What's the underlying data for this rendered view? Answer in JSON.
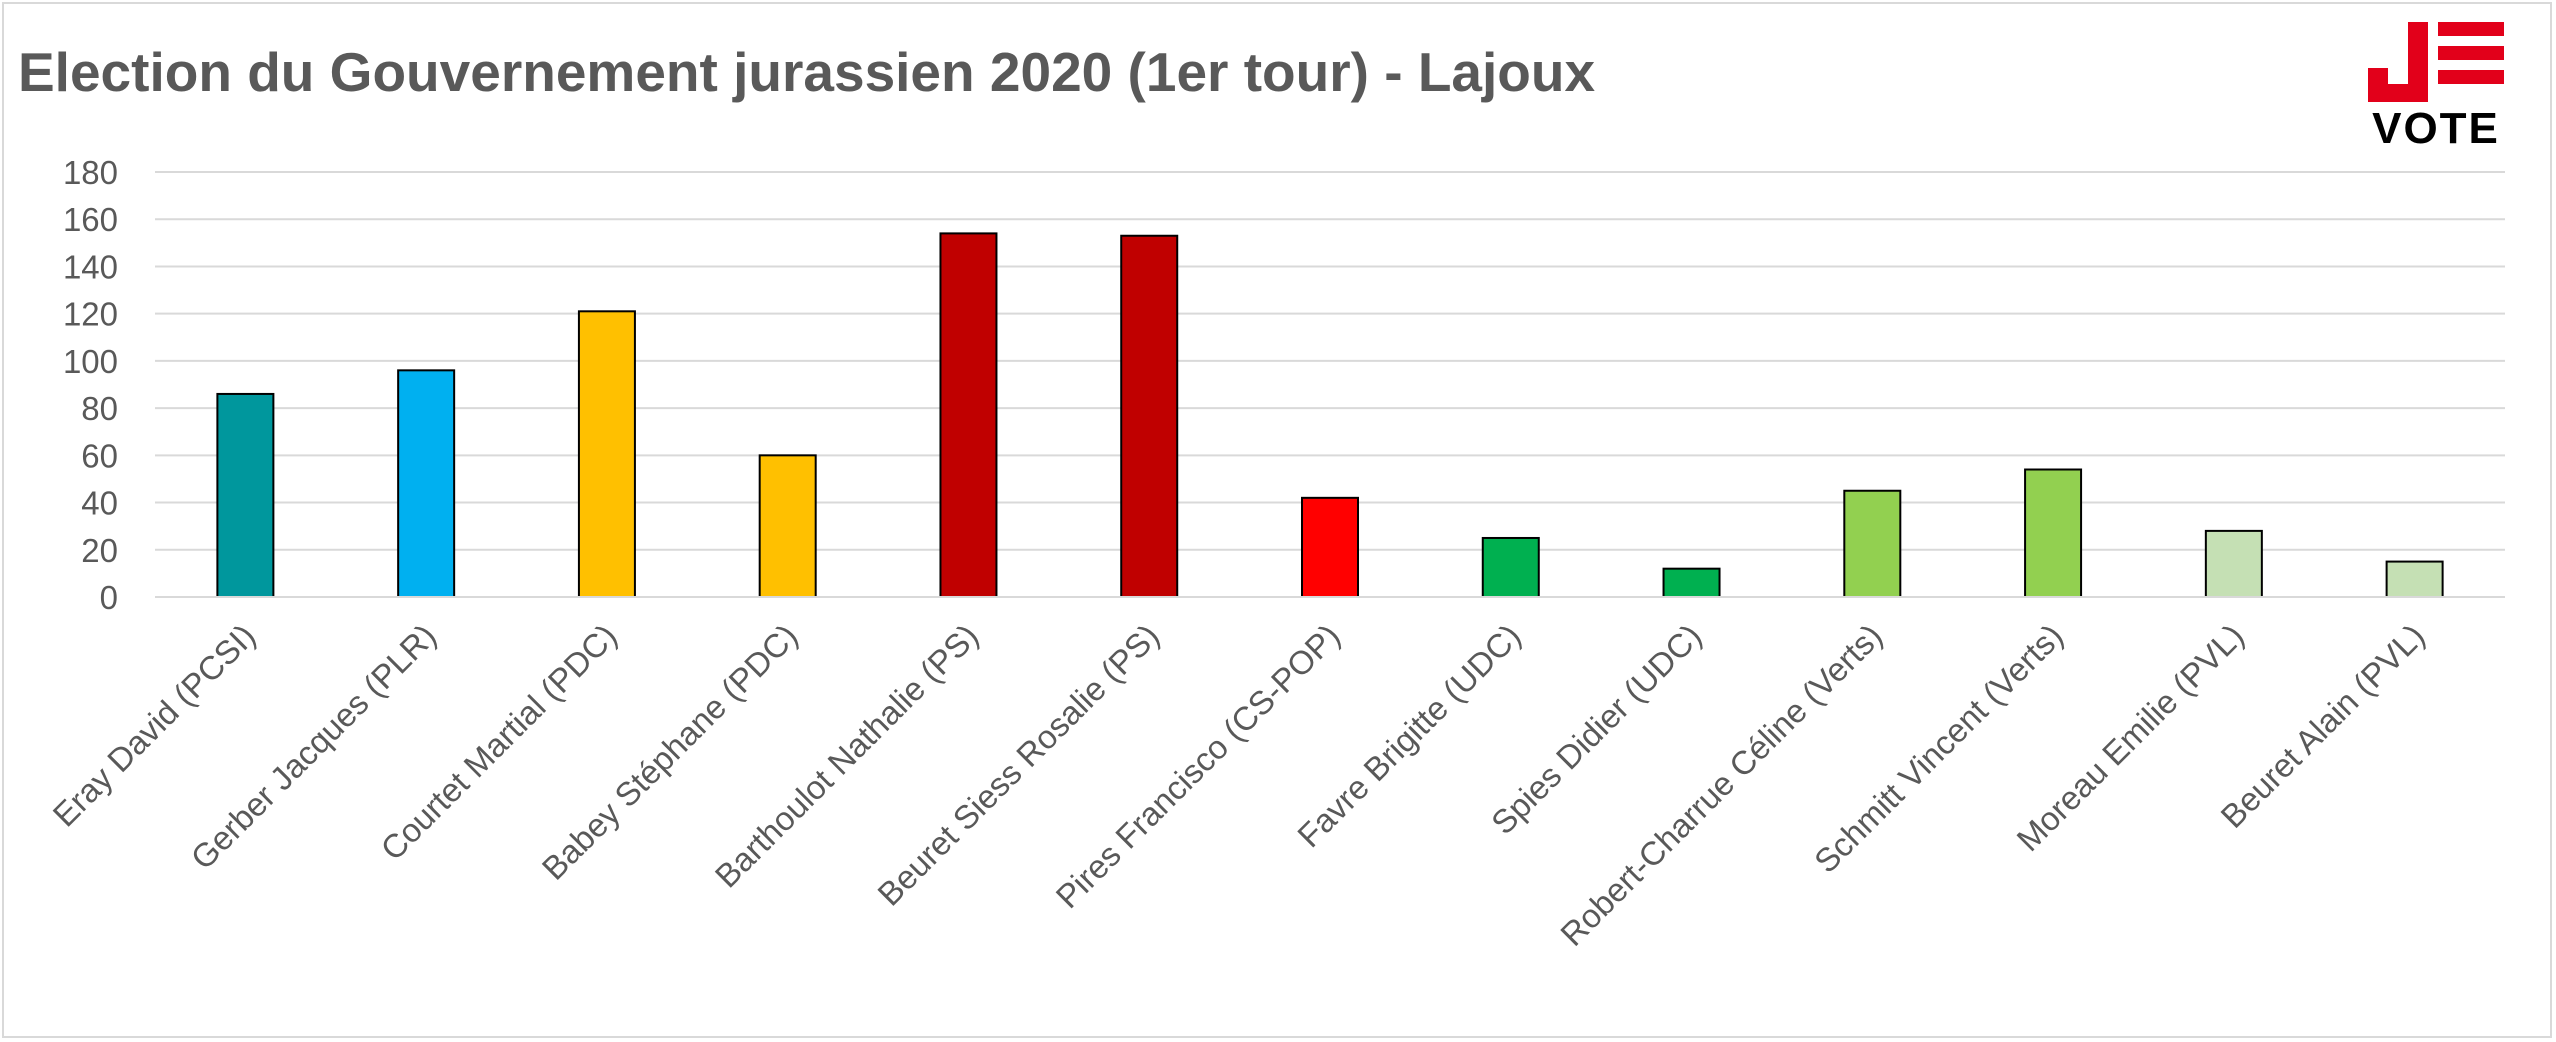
{
  "title": "Election du Gouvernement jurassien 2020 (1er tour) - Lajoux",
  "logo": {
    "mark": "J",
    "text": "VOTE",
    "colors": {
      "mark": "#e2001a",
      "text": "#000000"
    }
  },
  "chart_data": {
    "type": "bar",
    "title": "Election du Gouvernement jurassien 2020 (1er tour) - Lajoux",
    "xlabel": "",
    "ylabel": "",
    "ylim": [
      0,
      180
    ],
    "yticks": [
      0,
      20,
      40,
      60,
      80,
      100,
      120,
      140,
      160,
      180
    ],
    "grid": true,
    "legend": "none",
    "categories": [
      "Eray David (PCSI)",
      "Gerber Jacques (PLR)",
      "Courtet Martial (PDC)",
      "Babey Stéphane (PDC)",
      "Barthoulot Nathalie (PS)",
      "Beuret Siess Rosalie (PS)",
      "Pires Francisco (CS-POP)",
      "Favre Brigitte (UDC)",
      "Spies Didier (UDC)",
      "Robert-Charrue Céline (Verts)",
      "Schmitt Vincent (Verts)",
      "Moreau Emilie (PVL)",
      "Beuret Alain (PVL)"
    ],
    "values": [
      86,
      96,
      121,
      60,
      154,
      153,
      42,
      25,
      12,
      45,
      54,
      28,
      15
    ],
    "colors": [
      "#00979d",
      "#00b0f0",
      "#ffc000",
      "#ffc000",
      "#c00000",
      "#c00000",
      "#ff0000",
      "#00b050",
      "#00b050",
      "#92d050",
      "#92d050",
      "#c5e0b4",
      "#c5e0b4"
    ]
  }
}
